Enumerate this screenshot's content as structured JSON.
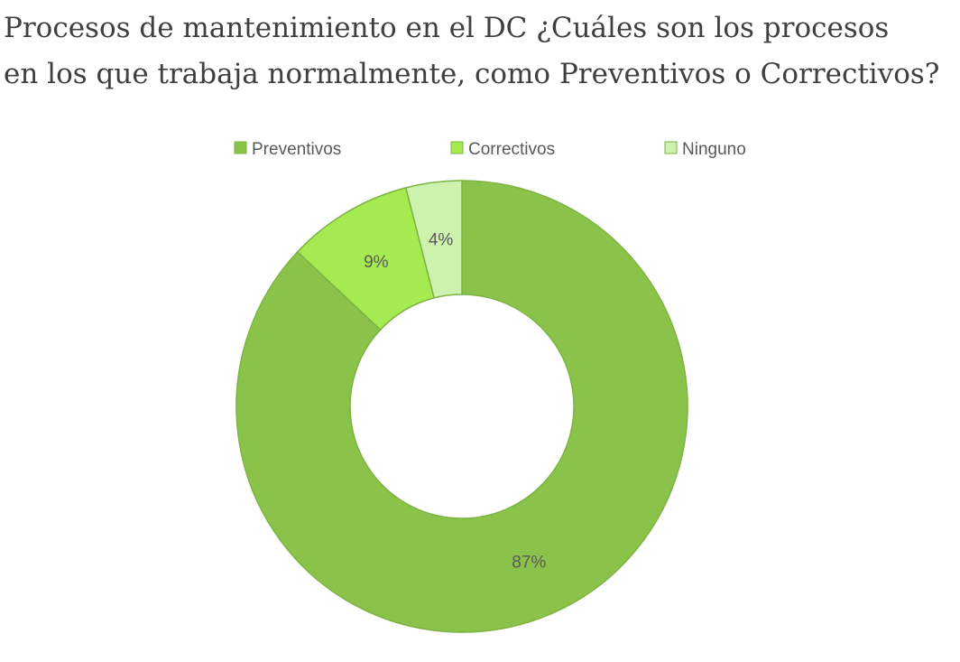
{
  "chart_data": {
    "type": "donut",
    "title_lines": [
      "Procesos de mantenimiento en el DC ¿Cuáles son los procesos",
      "en los que trabaja normalmente, como Preventivos o Correctivos?"
    ],
    "categories": [
      "Preventivos",
      "Correctivos",
      "Ninguno"
    ],
    "values": [
      87,
      9,
      4
    ],
    "value_labels": [
      "87%",
      "9%",
      "4%"
    ],
    "colors": [
      "#8bc34a",
      "#a6ea52",
      "#ccf2ad"
    ],
    "legend_position": "top"
  }
}
